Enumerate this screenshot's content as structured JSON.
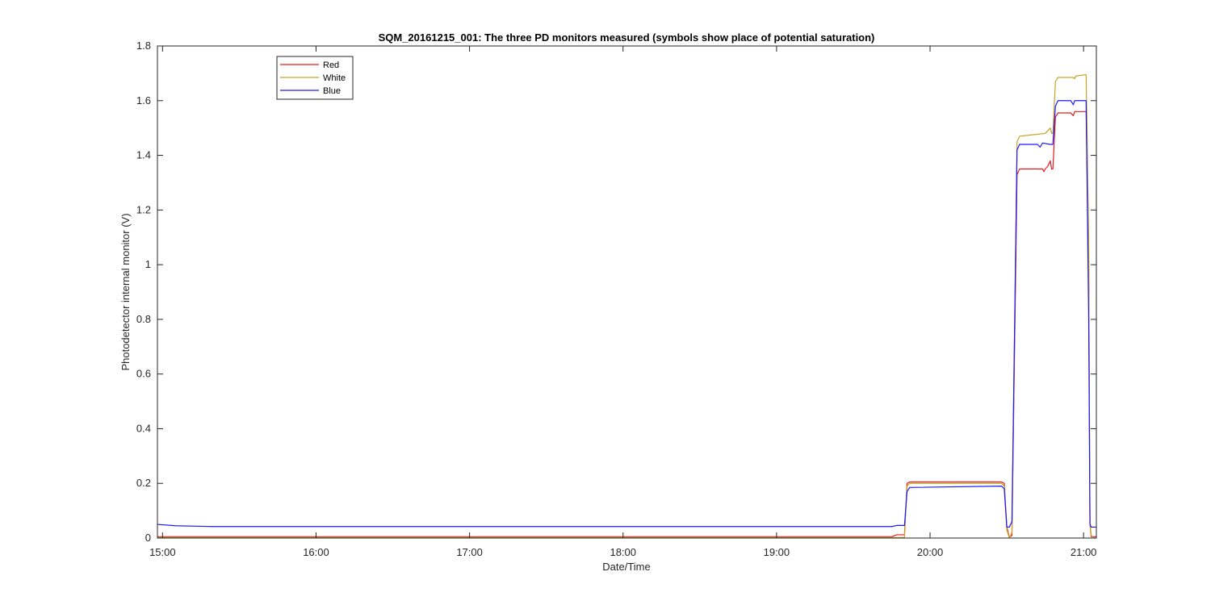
{
  "chart_data": {
    "type": "line",
    "title": "SQM_20161215_001: The three PD monitors measured (symbols show place of potential saturation)",
    "xlabel": "Date/Time",
    "ylabel": "Photodetector internal monitor (V)",
    "xlim": [
      "14:58",
      "21:05"
    ],
    "ylim": [
      0,
      1.8
    ],
    "x_ticks": [
      "15:00",
      "16:00",
      "17:00",
      "18:00",
      "19:00",
      "20:00",
      "21:00"
    ],
    "y_ticks": [
      0,
      0.2,
      0.4,
      0.6,
      0.8,
      1,
      1.2,
      1.4,
      1.6,
      1.8
    ],
    "y_tick_labels": [
      "0",
      "0.2",
      "0.4",
      "0.6",
      "0.8",
      "1",
      "1.2",
      "1.4",
      "1.6",
      "1.8"
    ],
    "grid": false,
    "legend_position": "top-left",
    "series": [
      {
        "name": "Red",
        "color": "#e41a1c",
        "points": [
          [
            "14:58",
            0.005
          ],
          [
            "19:45",
            0.005
          ],
          [
            "19:47",
            0.012
          ],
          [
            "19:50",
            0.012
          ],
          [
            "19:51",
            0.2
          ],
          [
            "19:52",
            0.205
          ],
          [
            "20:28",
            0.205
          ],
          [
            "20:29",
            0.2
          ],
          [
            "20:30",
            0.04
          ],
          [
            "20:31",
            0.002
          ],
          [
            "20:32",
            0.01
          ],
          [
            "20:34",
            1.33
          ],
          [
            "20:35",
            1.35
          ],
          [
            "20:44",
            1.35
          ],
          [
            "20:44.5",
            1.34
          ],
          [
            "20:45",
            1.35
          ],
          [
            "20:46",
            1.36
          ],
          [
            "20:47",
            1.38
          ],
          [
            "20:47.5",
            1.35
          ],
          [
            "20:48",
            1.35
          ],
          [
            "20:49",
            1.54
          ],
          [
            "20:50",
            1.555
          ],
          [
            "20:55",
            1.555
          ],
          [
            "20:56",
            1.545
          ],
          [
            "20:56.5",
            1.56
          ],
          [
            "21:01",
            1.56
          ],
          [
            "21:02",
            1.0
          ],
          [
            "21:02.5",
            0.05
          ],
          [
            "21:03",
            0.005
          ],
          [
            "21:05",
            0.005
          ]
        ]
      },
      {
        "name": "White",
        "color": "#c9a227",
        "points": [
          [
            "14:58",
            0.002
          ],
          [
            "19:50",
            0.002
          ],
          [
            "19:51",
            0.19
          ],
          [
            "19:52",
            0.2
          ],
          [
            "20:28",
            0.2
          ],
          [
            "20:29",
            0.19
          ],
          [
            "20:30",
            0.03
          ],
          [
            "20:31",
            0.0
          ],
          [
            "20:32",
            0.02
          ],
          [
            "20:34",
            1.45
          ],
          [
            "20:35",
            1.47
          ],
          [
            "20:40",
            1.475
          ],
          [
            "20:45",
            1.48
          ],
          [
            "20:47",
            1.5
          ],
          [
            "20:47.5",
            1.48
          ],
          [
            "20:48",
            1.48
          ],
          [
            "20:49",
            1.67
          ],
          [
            "20:50",
            1.685
          ],
          [
            "20:56",
            1.685
          ],
          [
            "20:56.5",
            1.68
          ],
          [
            "20:57",
            1.69
          ],
          [
            "21:01",
            1.695
          ],
          [
            "21:02",
            1.1
          ],
          [
            "21:02.5",
            0.05
          ],
          [
            "21:03",
            0.01
          ],
          [
            "21:04",
            0.0
          ],
          [
            "21:05",
            0.0
          ]
        ]
      },
      {
        "name": "Blue",
        "color": "#1a1aff",
        "points": [
          [
            "14:58",
            0.05
          ],
          [
            "15:05",
            0.045
          ],
          [
            "15:20",
            0.042
          ],
          [
            "17:00",
            0.042
          ],
          [
            "19:45",
            0.042
          ],
          [
            "19:47",
            0.046
          ],
          [
            "19:50",
            0.046
          ],
          [
            "19:51",
            0.17
          ],
          [
            "19:52",
            0.185
          ],
          [
            "20:28",
            0.19
          ],
          [
            "20:29",
            0.18
          ],
          [
            "20:30",
            0.04
          ],
          [
            "20:31",
            0.04
          ],
          [
            "20:32",
            0.06
          ],
          [
            "20:34",
            1.42
          ],
          [
            "20:35",
            1.44
          ],
          [
            "20:42",
            1.44
          ],
          [
            "20:43",
            1.43
          ],
          [
            "20:44",
            1.445
          ],
          [
            "20:47",
            1.44
          ],
          [
            "20:48",
            1.44
          ],
          [
            "20:49",
            1.58
          ],
          [
            "20:50",
            1.6
          ],
          [
            "20:55",
            1.6
          ],
          [
            "20:56",
            1.585
          ],
          [
            "20:56.5",
            1.6
          ],
          [
            "21:01",
            1.6
          ],
          [
            "21:02",
            0.8
          ],
          [
            "21:02.5",
            0.05
          ],
          [
            "21:03",
            0.04
          ],
          [
            "21:05",
            0.04
          ]
        ]
      }
    ]
  }
}
